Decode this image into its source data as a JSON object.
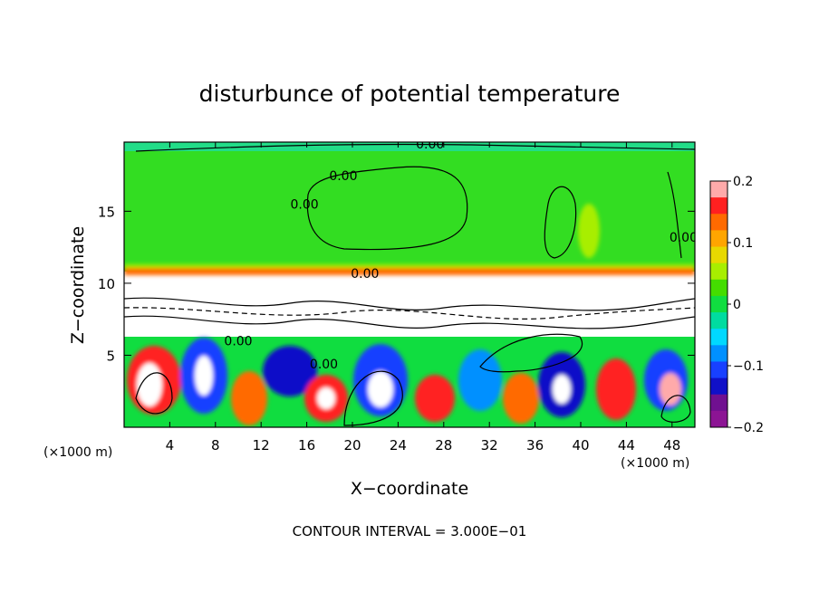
{
  "chart_data": {
    "type": "heatmap",
    "title": "disturbunce of potential temperature",
    "xlabel": "X−coordinate",
    "ylabel": "Z−coordinate",
    "x_unit": "(×1000 m)",
    "y_unit": "(×1000 m)",
    "xlim": [
      0,
      50
    ],
    "ylim": [
      0,
      19.8
    ],
    "x_ticks": [
      4,
      8,
      12,
      16,
      20,
      24,
      28,
      32,
      36,
      40,
      44,
      48
    ],
    "y_ticks": [
      5,
      10,
      15
    ],
    "colorbar": {
      "range": [
        -0.2,
        0.2
      ],
      "tick_values": [
        0.2,
        0.1,
        0,
        -0.1,
        -0.2
      ],
      "tick_labels": [
        "0.2",
        "0.1",
        "0",
        "−0.1",
        "−0.2"
      ],
      "colors": [
        "#ffaaaa",
        "#ff2020",
        "#ff6a00",
        "#ffa500",
        "#e8d800",
        "#a8ee00",
        "#44dd00",
        "#10dd40",
        "#00dca0",
        "#00d8ff",
        "#0090ff",
        "#1840ff",
        "#1010c8",
        "#701090",
        "#8c1494"
      ]
    },
    "contour_labels": [
      {
        "text": "0.00",
        "x": 26.8,
        "z": 19.5
      },
      {
        "text": "0.00",
        "x": 19.2,
        "z": 17.3
      },
      {
        "text": "0.00",
        "x": 15.8,
        "z": 15.3
      },
      {
        "text": "0.00",
        "x": 49.0,
        "z": 13.0
      },
      {
        "text": "0.00",
        "x": 21.1,
        "z": 10.5
      },
      {
        "text": "0.00",
        "x": 10.0,
        "z": 5.8
      },
      {
        "text": "0.00",
        "x": 17.5,
        "z": 4.2
      }
    ],
    "annotation": "CONTOUR INTERVAL = 3.000E−01"
  }
}
